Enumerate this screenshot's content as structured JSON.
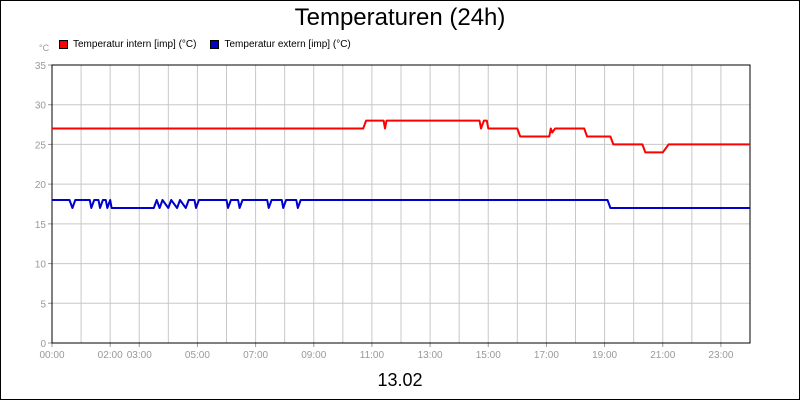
{
  "chart_data": {
    "type": "line",
    "title": "Temperaturen (24h)",
    "unit_label": "°C",
    "date_label": "13.02",
    "xlim": [
      0,
      24
    ],
    "ylim": [
      0,
      35
    ],
    "grid": true,
    "legend_position": "top-left",
    "y_ticks": [
      0,
      5,
      10,
      15,
      20,
      25,
      30,
      35
    ],
    "x_ticks": [
      {
        "hour": 0,
        "label": "00:00"
      },
      {
        "hour": 2,
        "label": "02:00"
      },
      {
        "hour": 3,
        "label": "03:00"
      },
      {
        "hour": 5,
        "label": "05:00"
      },
      {
        "hour": 7,
        "label": "07:00"
      },
      {
        "hour": 9,
        "label": "09:00"
      },
      {
        "hour": 11,
        "label": "11:00"
      },
      {
        "hour": 13,
        "label": "13:00"
      },
      {
        "hour": 15,
        "label": "15:00"
      },
      {
        "hour": 17,
        "label": "17:00"
      },
      {
        "hour": 19,
        "label": "19:00"
      },
      {
        "hour": 21,
        "label": "21:00"
      },
      {
        "hour": 23,
        "label": "23:00"
      }
    ],
    "series": [
      {
        "name": "Temperatur intern [imp] (°C)",
        "color": "#ff0000",
        "points": [
          [
            0,
            27
          ],
          [
            10.7,
            27
          ],
          [
            10.8,
            28
          ],
          [
            11.4,
            28
          ],
          [
            11.45,
            27
          ],
          [
            11.5,
            28
          ],
          [
            14.7,
            28
          ],
          [
            14.75,
            27
          ],
          [
            14.85,
            28
          ],
          [
            14.95,
            28
          ],
          [
            15.0,
            27
          ],
          [
            16.0,
            27
          ],
          [
            16.1,
            26
          ],
          [
            17.1,
            26
          ],
          [
            17.15,
            27
          ],
          [
            17.2,
            26.5
          ],
          [
            17.3,
            27
          ],
          [
            18.3,
            27
          ],
          [
            18.4,
            26
          ],
          [
            19.2,
            26
          ],
          [
            19.3,
            25
          ],
          [
            20.3,
            25
          ],
          [
            20.4,
            24
          ],
          [
            21.0,
            24
          ],
          [
            21.2,
            25
          ],
          [
            24,
            25
          ]
        ]
      },
      {
        "name": "Temperatur extern [imp] (°C)",
        "color": "#0000cc",
        "points": [
          [
            0,
            18
          ],
          [
            0.6,
            18
          ],
          [
            0.7,
            17
          ],
          [
            0.8,
            18
          ],
          [
            1.3,
            18
          ],
          [
            1.35,
            17
          ],
          [
            1.45,
            18
          ],
          [
            1.6,
            18
          ],
          [
            1.65,
            17
          ],
          [
            1.75,
            18
          ],
          [
            1.85,
            18
          ],
          [
            1.9,
            17
          ],
          [
            2.0,
            18
          ],
          [
            2.05,
            17
          ],
          [
            3.5,
            17
          ],
          [
            3.6,
            18
          ],
          [
            3.7,
            17
          ],
          [
            3.8,
            18
          ],
          [
            4.0,
            17
          ],
          [
            4.1,
            18
          ],
          [
            4.3,
            17
          ],
          [
            4.4,
            18
          ],
          [
            4.6,
            17
          ],
          [
            4.7,
            18
          ],
          [
            4.9,
            18
          ],
          [
            4.95,
            17
          ],
          [
            5.05,
            18
          ],
          [
            6.0,
            18
          ],
          [
            6.05,
            17
          ],
          [
            6.15,
            18
          ],
          [
            6.4,
            18
          ],
          [
            6.45,
            17
          ],
          [
            6.55,
            18
          ],
          [
            7.4,
            18
          ],
          [
            7.45,
            17
          ],
          [
            7.55,
            18
          ],
          [
            7.9,
            18
          ],
          [
            7.95,
            17
          ],
          [
            8.05,
            18
          ],
          [
            8.4,
            18
          ],
          [
            8.45,
            17
          ],
          [
            8.55,
            18
          ],
          [
            19.1,
            18
          ],
          [
            19.2,
            17
          ],
          [
            24,
            17
          ]
        ]
      }
    ]
  }
}
